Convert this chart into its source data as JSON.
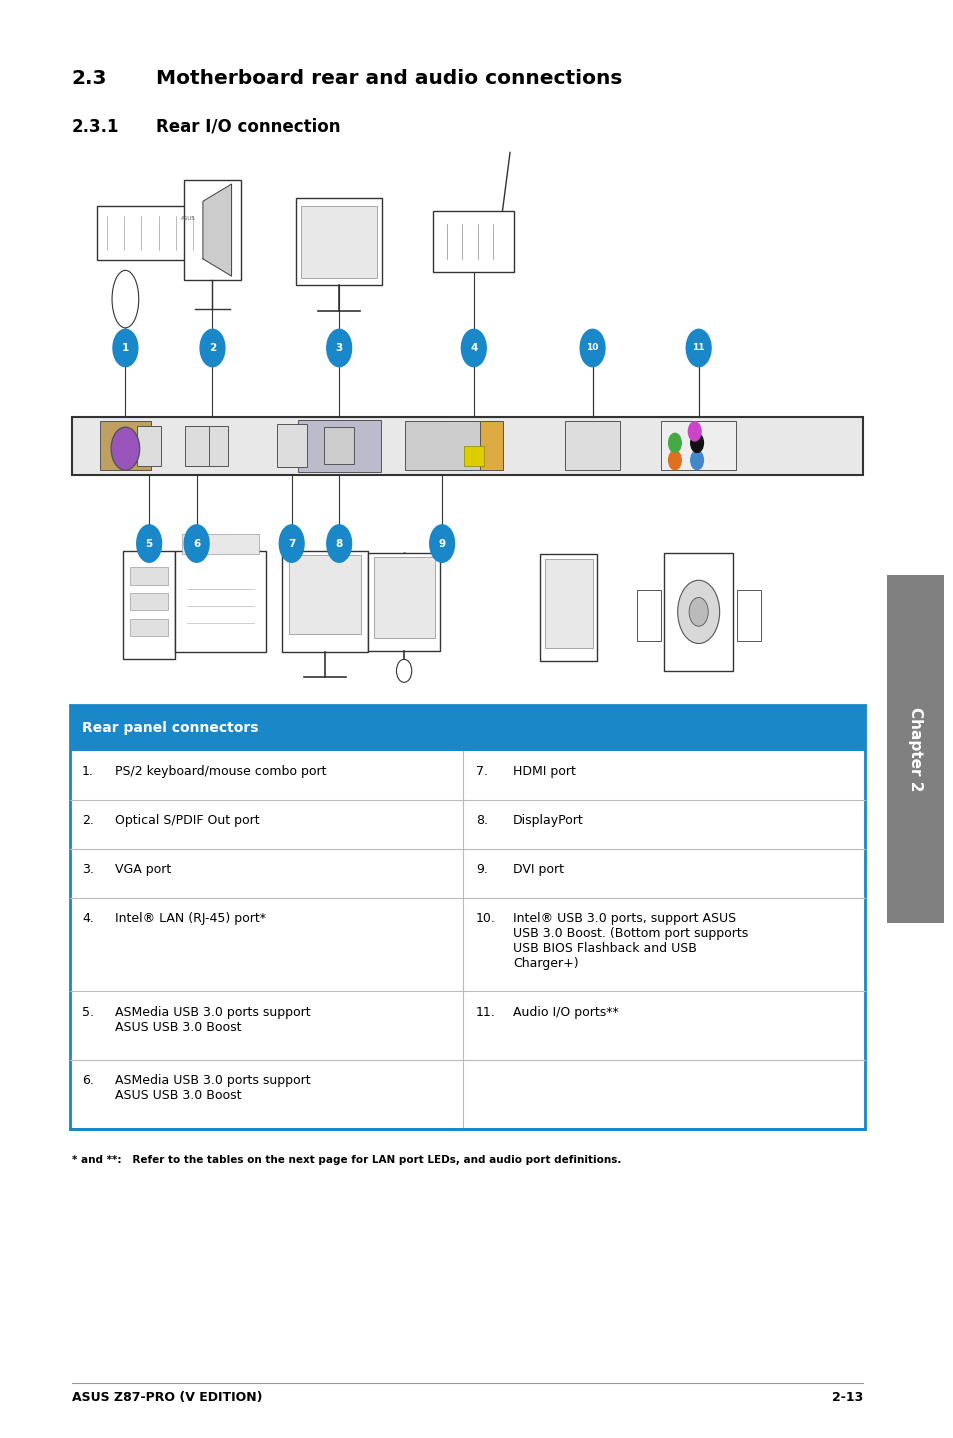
{
  "page_bg": "#ffffff",
  "heading1_num": "2.3",
  "heading1_text": "Motherboard rear and audio connections",
  "heading2_num": "2.3.1",
  "heading2_text": "Rear I/O connection",
  "table_header": "Rear panel connectors",
  "table_header_bg": "#1a87c8",
  "table_header_color": "#ffffff",
  "table_border_color": "#1a87c8",
  "table_line_color": "#bbbbbb",
  "circle_color": "#1a87c8",
  "rows": [
    {
      "left_num": "1.",
      "left_text": "PS/2 keyboard/mouse combo port",
      "right_num": "7.",
      "right_text": "HDMI port"
    },
    {
      "left_num": "2.",
      "left_text": "Optical S/PDIF Out port",
      "right_num": "8.",
      "right_text": "DisplayPort"
    },
    {
      "left_num": "3.",
      "left_text": "VGA port",
      "right_num": "9.",
      "right_text": "DVI port"
    },
    {
      "left_num": "4.",
      "left_text": "Intel® LAN (RJ-45) port*",
      "right_num": "10.",
      "right_text": "Intel® USB 3.0 ports, support ASUS\nUSB 3.0 Boost. (Bottom port supports\nUSB BIOS Flashback and USB\nCharger+)"
    },
    {
      "left_num": "5.",
      "left_text": "ASMedia USB 3.0 ports support\nASUS USB 3.0 Boost",
      "right_num": "11.",
      "right_text": "Audio I/O ports**"
    },
    {
      "left_num": "6.",
      "left_text": "ASMedia USB 3.0 ports support\nASUS USB 3.0 Boost",
      "right_num": "",
      "right_text": ""
    }
  ],
  "footnote": "* and **:   Refer to the tables on the next page for LAN port LEDs, and audio port definitions.",
  "footer_left": "ASUS Z87-PRO (V EDITION)",
  "footer_right": "2-13",
  "chapter_label": "Chapter 2",
  "numbers_above": {
    "1": 0.068,
    "2": 0.178,
    "3": 0.338,
    "4": 0.508,
    "10": 0.658,
    "11": 0.792
  },
  "numbers_below": {
    "5": 0.098,
    "6": 0.158,
    "7": 0.278,
    "8": 0.338,
    "9": 0.468
  }
}
